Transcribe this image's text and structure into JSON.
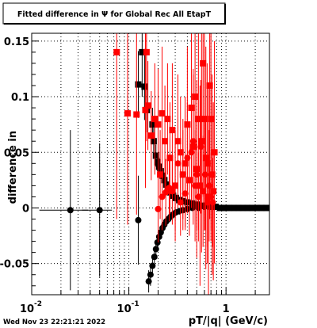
{
  "chart_data": {
    "type": "scatter",
    "title": "Fitted difference in  Ψ  for Global Rec All EtapT",
    "xlabel": "pT/|q| (GeV/c)",
    "ylabel": "difference in",
    "xscale": "log",
    "xlim": [
      0.01,
      2.8
    ],
    "ylim": [
      -0.078,
      0.157
    ],
    "grid": true,
    "x_ticks": [
      {
        "value": 0.01,
        "base": "10",
        "exp": "-2"
      },
      {
        "value": 0.1,
        "base": "10",
        "exp": "-1"
      },
      {
        "value": 1,
        "base": "1",
        "exp": ""
      }
    ],
    "y_ticks": [
      {
        "value": -0.05,
        "label": "-0.05"
      },
      {
        "value": 0,
        "label": "0"
      },
      {
        "value": 0.05,
        "label": "0.05"
      },
      {
        "value": 0.1,
        "label": "0.1"
      },
      {
        "value": 0.15,
        "label": "0.15"
      }
    ],
    "series": [
      {
        "color": "#000000",
        "marker": "circle",
        "points": [
          {
            "x": 0.025,
            "y": -0.002,
            "xerr": 0.013,
            "yerr": 0.072
          },
          {
            "x": 0.05,
            "y": -0.002,
            "xerr": 0.017,
            "yerr": 0.06
          },
          {
            "x": 0.125,
            "y": -0.011,
            "xerr": 0.005,
            "yerr": 0.04
          },
          {
            "x": 0.16,
            "y": -0.066,
            "yerr": 0.01
          },
          {
            "x": 0.167,
            "y": -0.06,
            "yerr": 0.01
          },
          {
            "x": 0.175,
            "y": -0.052,
            "yerr": 0.008
          },
          {
            "x": 0.183,
            "y": -0.044,
            "yerr": 0.008
          },
          {
            "x": 0.19,
            "y": -0.037,
            "yerr": 0.007
          },
          {
            "x": 0.197,
            "y": -0.031,
            "yerr": 0.006
          },
          {
            "x": 0.205,
            "y": -0.026,
            "yerr": 0.006
          },
          {
            "x": 0.213,
            "y": -0.022,
            "yerr": 0.005
          },
          {
            "x": 0.222,
            "y": -0.018,
            "yerr": 0.005
          },
          {
            "x": 0.232,
            "y": -0.015,
            "yerr": 0.005
          },
          {
            "x": 0.243,
            "y": -0.012,
            "yerr": 0.004
          },
          {
            "x": 0.255,
            "y": -0.01,
            "yerr": 0.004
          },
          {
            "x": 0.268,
            "y": -0.008,
            "yerr": 0.004
          },
          {
            "x": 0.285,
            "y": -0.006,
            "yerr": 0.003
          },
          {
            "x": 0.305,
            "y": -0.004,
            "yerr": 0.003
          },
          {
            "x": 0.33,
            "y": -0.003,
            "yerr": 0.003
          },
          {
            "x": 0.36,
            "y": -0.002,
            "yerr": 0.003
          },
          {
            "x": 0.4,
            "y": -0.001,
            "yerr": 0.002
          },
          {
            "x": 0.45,
            "y": 0.0,
            "yerr": 0.002
          },
          {
            "x": 0.52,
            "y": 0.0,
            "yerr": 0.002
          },
          {
            "x": 0.6,
            "y": 0.001,
            "yerr": 0.002
          }
        ]
      },
      {
        "color": "#000000",
        "marker": "square",
        "points": [
          {
            "x": 0.137,
            "y": 0.14,
            "yerr": 0.04
          },
          {
            "x": 0.125,
            "y": 0.111,
            "yerr": 0.03
          },
          {
            "x": 0.145,
            "y": 0.109,
            "yerr": 0.03
          },
          {
            "x": 0.153,
            "y": 0.088,
            "yerr": 0.02
          },
          {
            "x": 0.175,
            "y": 0.075,
            "yerr": 0.015
          },
          {
            "x": 0.18,
            "y": 0.06,
            "yerr": 0.012
          },
          {
            "x": 0.19,
            "y": 0.047,
            "yerr": 0.01
          },
          {
            "x": 0.197,
            "y": 0.041,
            "yerr": 0.008
          },
          {
            "x": 0.205,
            "y": 0.037,
            "yerr": 0.008
          },
          {
            "x": 0.213,
            "y": 0.033,
            "yerr": 0.007
          },
          {
            "x": 0.222,
            "y": 0.029,
            "yerr": 0.006
          },
          {
            "x": 0.232,
            "y": 0.025,
            "yerr": 0.005
          },
          {
            "x": 0.243,
            "y": 0.021,
            "yerr": 0.005
          },
          {
            "x": 0.255,
            "y": 0.017,
            "yerr": 0.004
          },
          {
            "x": 0.268,
            "y": 0.014,
            "yerr": 0.004
          },
          {
            "x": 0.285,
            "y": 0.011,
            "yerr": 0.004
          },
          {
            "x": 0.305,
            "y": 0.009,
            "yerr": 0.003
          },
          {
            "x": 0.33,
            "y": 0.007,
            "yerr": 0.003
          },
          {
            "x": 0.36,
            "y": 0.006,
            "yerr": 0.003
          },
          {
            "x": 0.4,
            "y": 0.005,
            "yerr": 0.003
          },
          {
            "x": 0.45,
            "y": 0.004,
            "yerr": 0.002
          },
          {
            "x": 0.5,
            "y": 0.003,
            "yerr": 0.002
          },
          {
            "x": 0.56,
            "y": 0.002,
            "yerr": 0.002
          },
          {
            "x": 0.63,
            "y": 0.002,
            "yerr": 0.002
          },
          {
            "x": 0.7,
            "y": 0.001,
            "yerr": 0.001
          },
          {
            "x": 0.78,
            "y": 0.001,
            "yerr": 0.001
          },
          {
            "x": 0.87,
            "y": 0.0,
            "yerr": 0.001
          },
          {
            "x": 0.97,
            "y": 0.0,
            "yerr": 0.001
          },
          {
            "x": 1.08,
            "y": 0.0,
            "yerr": 0.001
          },
          {
            "x": 1.2,
            "y": 0.0,
            "yerr": 0.001
          },
          {
            "x": 1.34,
            "y": 0.0,
            "yerr": 0.001
          },
          {
            "x": 1.5,
            "y": 0.0,
            "yerr": 0.001
          },
          {
            "x": 1.67,
            "y": 0.0,
            "yerr": 0.001
          },
          {
            "x": 1.86,
            "y": 0.0,
            "yerr": 0.001
          },
          {
            "x": 2.08,
            "y": 0.0,
            "yerr": 0.001
          },
          {
            "x": 2.32,
            "y": 0.0,
            "yerr": 0.001
          },
          {
            "x": 2.6,
            "y": 0.0,
            "yerr": 0.001
          }
        ]
      },
      {
        "color": "#ff0000",
        "marker": "square",
        "points": [
          {
            "x": 0.075,
            "y": 0.14,
            "yerr": 0.15
          },
          {
            "x": 0.097,
            "y": 0.085,
            "yerr": 0.1
          },
          {
            "x": 0.12,
            "y": 0.084,
            "yerr": 0.09
          },
          {
            "x": 0.148,
            "y": 0.088,
            "yerr": 0.07
          },
          {
            "x": 0.152,
            "y": 0.14,
            "yerr": 0.08
          },
          {
            "x": 0.157,
            "y": 0.092,
            "yerr": 0.04
          },
          {
            "x": 0.17,
            "y": 0.065,
            "yerr": 0.04
          },
          {
            "x": 0.185,
            "y": 0.08,
            "yerr": 0.05
          },
          {
            "x": 0.2,
            "y": 0.075,
            "yerr": 0.05
          },
          {
            "x": 0.21,
            "y": 0.03,
            "yerr": 0.04
          },
          {
            "x": 0.22,
            "y": 0.085,
            "yerr": 0.06
          },
          {
            "x": 0.235,
            "y": 0.06,
            "yerr": 0.05
          },
          {
            "x": 0.25,
            "y": 0.08,
            "yerr": 0.05
          },
          {
            "x": 0.265,
            "y": 0.045,
            "yerr": 0.05
          },
          {
            "x": 0.28,
            "y": 0.07,
            "yerr": 0.06
          },
          {
            "x": 0.3,
            "y": 0.02,
            "yerr": 0.05
          },
          {
            "x": 0.32,
            "y": 0.06,
            "yerr": 0.06
          },
          {
            "x": 0.34,
            "y": 0.05,
            "yerr": 0.05
          },
          {
            "x": 0.36,
            "y": 0.03,
            "yerr": 0.05
          },
          {
            "x": 0.38,
            "y": 0.04,
            "yerr": 0.06
          },
          {
            "x": 0.4,
            "y": 0.075,
            "yerr": 0.07
          },
          {
            "x": 0.42,
            "y": 0.025,
            "yerr": 0.05
          },
          {
            "x": 0.44,
            "y": 0.09,
            "yerr": 0.08
          },
          {
            "x": 0.46,
            "y": 0.055,
            "yerr": 0.07
          },
          {
            "x": 0.48,
            "y": 0.1,
            "yerr": 0.09
          },
          {
            "x": 0.5,
            "y": 0.035,
            "yerr": 0.08
          },
          {
            "x": 0.52,
            "y": 0.08,
            "yerr": 0.1
          },
          {
            "x": 0.54,
            "y": 0.02,
            "yerr": 0.09
          },
          {
            "x": 0.56,
            "y": 0.06,
            "yerr": 0.1
          },
          {
            "x": 0.58,
            "y": 0.13,
            "yerr": 0.12
          },
          {
            "x": 0.6,
            "y": 0.08,
            "yerr": 0.1
          },
          {
            "x": 0.62,
            "y": 0.045,
            "yerr": 0.1
          },
          {
            "x": 0.64,
            "y": 0.04,
            "yerr": 0.09
          },
          {
            "x": 0.66,
            "y": 0.01,
            "yerr": 0.1
          },
          {
            "x": 0.68,
            "y": 0.11,
            "yerr": 0.12
          },
          {
            "x": 0.7,
            "y": 0.08,
            "yerr": 0.1
          },
          {
            "x": 0.72,
            "y": 0.03,
            "yerr": 0.09
          },
          {
            "x": 0.74,
            "y": 0.015,
            "yerr": 0.08
          },
          {
            "x": 0.76,
            "y": 0.05,
            "yerr": 0.1
          }
        ]
      },
      {
        "color": "#ff0000",
        "marker": "circle",
        "points": [
          {
            "x": 0.2,
            "y": -0.001,
            "yerr": 0.03
          },
          {
            "x": 0.22,
            "y": 0.01,
            "yerr": 0.03
          },
          {
            "x": 0.24,
            "y": 0.014,
            "yerr": 0.03
          },
          {
            "x": 0.26,
            "y": 0.018,
            "yerr": 0.03
          },
          {
            "x": 0.28,
            "y": 0.015,
            "yerr": 0.03
          },
          {
            "x": 0.3,
            "y": 0.02,
            "yerr": 0.04
          },
          {
            "x": 0.32,
            "y": 0.04,
            "yerr": 0.04
          },
          {
            "x": 0.34,
            "y": 0.005,
            "yerr": 0.03
          },
          {
            "x": 0.36,
            "y": 0.03,
            "yerr": 0.04
          },
          {
            "x": 0.38,
            "y": 0.013,
            "yerr": 0.03
          },
          {
            "x": 0.4,
            "y": 0.045,
            "yerr": 0.05
          },
          {
            "x": 0.42,
            "y": 0.025,
            "yerr": 0.04
          },
          {
            "x": 0.44,
            "y": 0.05,
            "yerr": 0.05
          },
          {
            "x": 0.46,
            "y": 0.06,
            "yerr": 0.06
          },
          {
            "x": 0.48,
            "y": 0.02,
            "yerr": 0.05
          },
          {
            "x": 0.5,
            "y": 0.03,
            "yerr": 0.05
          },
          {
            "x": 0.52,
            "y": 0.01,
            "yerr": 0.04
          },
          {
            "x": 0.55,
            "y": 0.055,
            "yerr": 0.06
          },
          {
            "x": 0.58,
            "y": 0.015,
            "yerr": 0.05
          },
          {
            "x": 0.61,
            "y": 0.03,
            "yerr": 0.05
          },
          {
            "x": 0.64,
            "y": 0.005,
            "yerr": 0.04
          },
          {
            "x": 0.67,
            "y": 0.02,
            "yerr": 0.05
          },
          {
            "x": 0.7,
            "y": 0.01,
            "yerr": 0.04
          },
          {
            "x": 0.73,
            "y": 0.005,
            "yerr": 0.04
          }
        ]
      }
    ]
  },
  "footer": {
    "timestamp": "Wed Nov 23 22:21:21 2022"
  }
}
